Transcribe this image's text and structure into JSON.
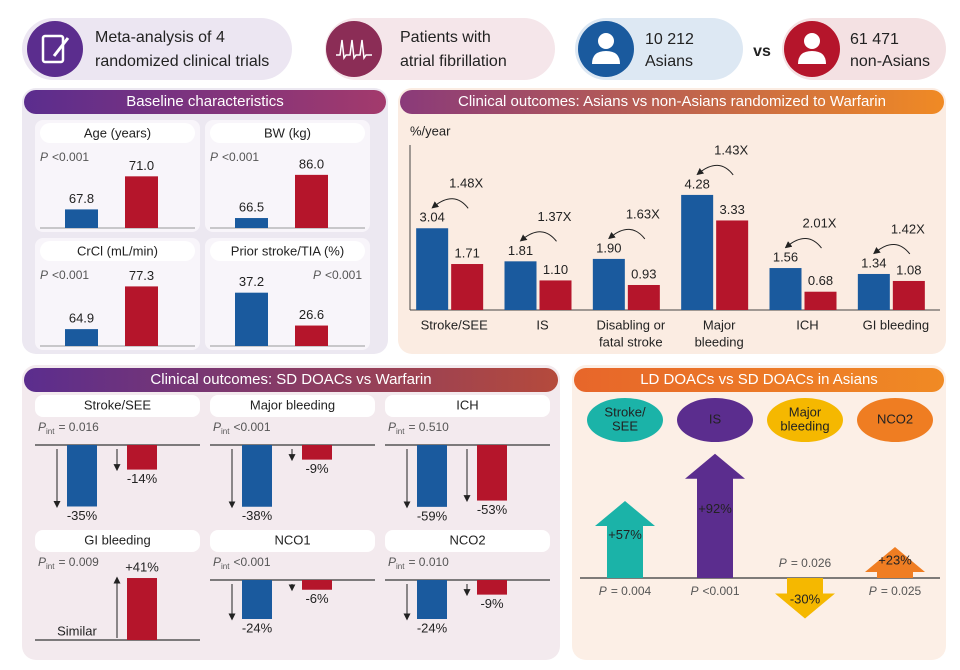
{
  "header": {
    "items": [
      {
        "lines": [
          "Meta-analysis of 4",
          "randomized clinical trials"
        ]
      },
      {
        "lines": [
          "Patients with",
          "atrial fibrillation"
        ]
      }
    ],
    "groups": [
      {
        "count": "10 212",
        "label": "Asians"
      },
      {
        "count": "61 471",
        "label": "non-Asians"
      }
    ],
    "vs": "vs"
  },
  "p_symbol": "P",
  "p_subscript": "int",
  "baseline": {
    "title": "Baseline characteristics",
    "colors": [
      "#1a5a9e",
      "#b5152b"
    ],
    "panels": [
      {
        "title": "Age (years)",
        "p": "<0.001",
        "values": [
          67.8,
          71.0
        ],
        "value_labels": [
          "67.8",
          "71.0"
        ],
        "ylim": [
          66,
          72
        ]
      },
      {
        "title": "BW (kg)",
        "p": "<0.001",
        "values": [
          66.5,
          86.0
        ],
        "value_labels": [
          "66.5",
          "86.0"
        ],
        "ylim": [
          62,
          90
        ]
      },
      {
        "title": "CrCl (mL/min)",
        "p": "<0.001",
        "values": [
          64.9,
          77.3
        ],
        "value_labels": [
          "64.9",
          "77.3"
        ],
        "ylim": [
          60,
          78
        ]
      },
      {
        "title": "Prior stroke/TIA (%)",
        "p": "<0.001",
        "values": [
          37.2,
          26.6
        ],
        "value_labels": [
          "37.2",
          "26.6"
        ],
        "ylim": [
          20,
          40
        ]
      }
    ]
  },
  "warfarin": {
    "title": "Clinical outcomes: Asians vs non-Asians randomized to Warfarin",
    "y_label": "%/year",
    "categories": [
      [
        "Stroke/SEE"
      ],
      [
        "IS"
      ],
      [
        "Disabling or",
        "fatal stroke"
      ],
      [
        "Major",
        "bleeding"
      ],
      [
        "ICH"
      ],
      [
        "GI bleeding"
      ]
    ],
    "ylim": [
      0,
      4.5
    ],
    "series": [
      {
        "color": "#1a5a9e",
        "values": [
          3.04,
          1.81,
          1.9,
          4.28,
          1.56,
          1.34
        ],
        "value_labels": [
          "3.04",
          "1.81",
          "1.90",
          "4.28",
          "1.56",
          "1.34"
        ]
      },
      {
        "color": "#b5152b",
        "values": [
          1.71,
          1.1,
          0.93,
          3.33,
          0.68,
          1.08
        ],
        "value_labels": [
          "1.71",
          "1.10",
          "0.93",
          "3.33",
          "0.68",
          "1.08"
        ]
      }
    ],
    "ratios": [
      1.48,
      1.37,
      1.63,
      1.43,
      2.01,
      1.42
    ],
    "ratio_labels": [
      "1.48X",
      "1.37X",
      "1.63X",
      "1.43X",
      "2.01X",
      "1.42X"
    ],
    "ratio_color": "#f08a24"
  },
  "sd": {
    "title": "Clinical outcomes: SD DOACs vs Warfarin",
    "colors": [
      "#1a5a9e",
      "#b5152b"
    ],
    "panels": [
      {
        "title": "Stroke/SEE",
        "p": "= 0.016",
        "values": [
          -35,
          -14
        ],
        "value_labels": [
          "-35%",
          "-14%"
        ],
        "ylim": [
          -37,
          0
        ]
      },
      {
        "title": "Major bleeding",
        "p": "<0.001",
        "values": [
          -38,
          -9
        ],
        "value_labels": [
          "-38%",
          "-9%"
        ],
        "ylim": [
          -40,
          0
        ]
      },
      {
        "title": "ICH",
        "p": "= 0.510",
        "values": [
          -59,
          -53
        ],
        "value_labels": [
          "-59%",
          "-53%"
        ],
        "ylim": [
          -62,
          0
        ]
      },
      {
        "title": "GI bleeding",
        "p": "= 0.009",
        "values": [
          null,
          41
        ],
        "value_labels": [
          null,
          "+41%"
        ],
        "note": "Similar",
        "ylim": [
          0,
          43
        ]
      },
      {
        "title": "NCO1",
        "p": "<0.001",
        "values": [
          -24,
          -6
        ],
        "value_labels": [
          "-24%",
          "-6%"
        ],
        "ylim": [
          -40,
          0
        ]
      },
      {
        "title": "NCO2",
        "p": "= 0.010",
        "values": [
          -24,
          -9
        ],
        "value_labels": [
          "-24%",
          "-9%"
        ],
        "ylim": [
          -40,
          0
        ]
      }
    ]
  },
  "ld": {
    "title": "LD DOACs vs SD DOACs in Asians",
    "items": [
      {
        "lines": [
          "Stroke/",
          "SEE"
        ],
        "color": "#1bb3a8",
        "value": 57,
        "value_label": "+57%",
        "p": "= 0.004"
      },
      {
        "lines": [
          "IS"
        ],
        "color": "#5b2d8e",
        "value": 92,
        "value_label": "+92%",
        "p": "<0.001"
      },
      {
        "lines": [
          "Major",
          "bleeding"
        ],
        "color": "#f5b800",
        "value": -30,
        "value_label": "-30%",
        "p": "= 0.026"
      },
      {
        "lines": [
          "NCO2"
        ],
        "color": "#ef7d22",
        "value": 23,
        "value_label": "+23%",
        "p": "= 0.025"
      }
    ]
  }
}
